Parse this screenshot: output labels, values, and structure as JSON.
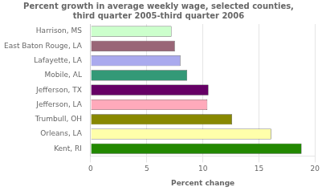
{
  "chart_data": {
    "type": "bar",
    "orientation": "horizontal",
    "title": "Percent growth in average weekly wage, selected counties,\nthird quarter 2005-third quarter 2006",
    "xlabel": "Percent change",
    "categories": [
      "Harrison, MS",
      "East Baton Rouge, LA",
      "Lafayette, LA",
      "Mobile, AL",
      "Jefferson, TX",
      "Jefferson, LA",
      "Trumbull, OH",
      "Orleans, LA",
      "Kent, RI"
    ],
    "values": [
      7.2,
      7.5,
      8.0,
      8.6,
      10.5,
      10.4,
      12.6,
      16.1,
      18.8
    ],
    "colors": [
      "#ccffcc",
      "#996677",
      "#aaaaee",
      "#339977",
      "#660066",
      "#ffaabb",
      "#888800",
      "#ffffaa",
      "#228800"
    ],
    "xlim": [
      0,
      20
    ],
    "xticks": [
      0,
      5,
      10,
      15,
      20
    ],
    "grid": true
  }
}
